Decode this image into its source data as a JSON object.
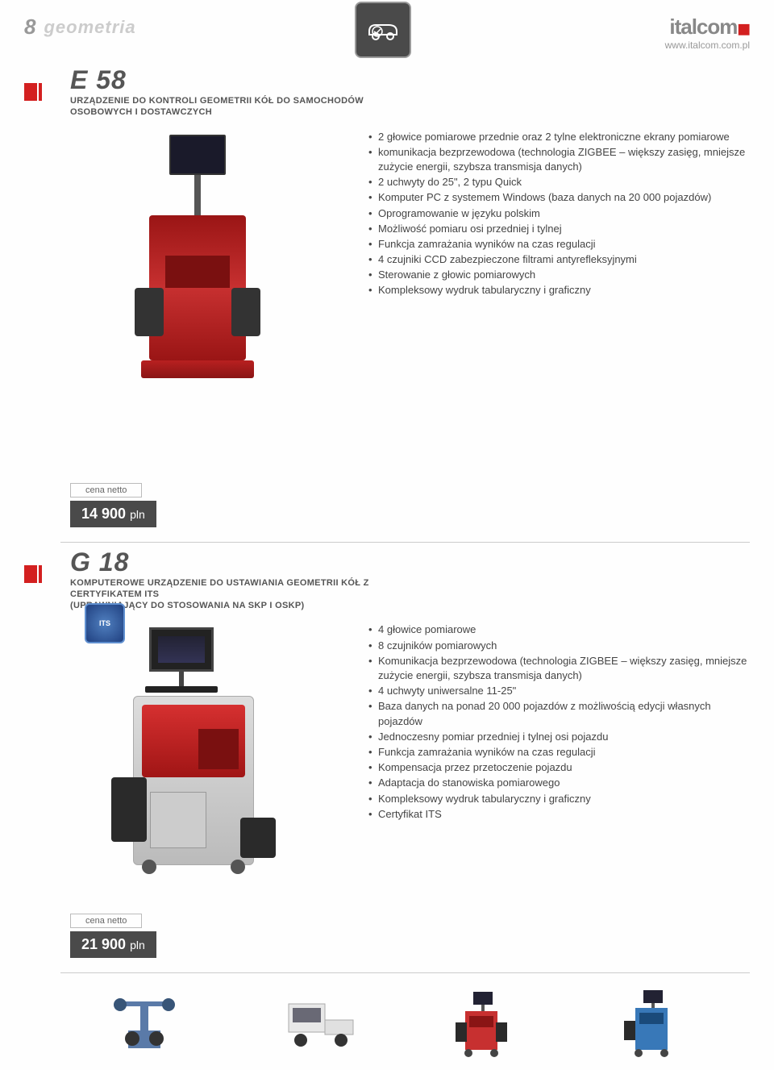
{
  "header": {
    "page_number": "8",
    "section": "geometria",
    "brand": "italcom",
    "url": "www.italcom.com.pl"
  },
  "product1": {
    "code": "E 58",
    "subtitle": "URZĄDZENIE DO KONTROLI GEOMETRII KÓŁ DO SAMOCHODÓW OSOBOWYCH I DOSTAWCZYCH",
    "features": [
      "2 głowice pomiarowe przednie oraz 2 tylne elektroniczne ekrany pomiarowe",
      "komunikacja bezprzewodowa (technologia ZIGBEE – większy zasięg, mniejsze zużycie energii, szybsza transmisja danych)",
      "2 uchwyty do 25\", 2 typu Quick",
      "Komputer PC z systemem Windows (baza danych na 20 000 pojazdów)",
      "Oprogramowanie w języku polskim",
      "Możliwość pomiaru osi przedniej i tylnej",
      "Funkcja zamrażania wyników na czas regulacji",
      "4 czujniki CCD zabezpieczone filtrami antyrefleksyjnymi",
      "Sterowanie z głowic pomiarowych",
      "Kompleksowy wydruk tabularyczny i graficzny"
    ],
    "price_label": "cena netto",
    "price": "14 900",
    "price_unit": "pln"
  },
  "product2": {
    "code": "G 18",
    "subtitle": "KOMPUTEROWE URZĄDZENIE DO USTAWIANIA GEOMETRII KÓŁ Z CERTYFIKATEM ITS\n(UPRAWNIAJĄCY DO STOSOWANIA NA SKP I OSKP)",
    "features": [
      "4 głowice pomiarowe",
      "8 czujników pomiarowych",
      "Komunikacja bezprzewodowa (technologia ZIGBEE – większy zasięg, mniejsze zużycie energii, szybsza transmisja danych)",
      "4 uchwyty uniwersalne 11-25\"",
      "Baza danych na ponad 20 000 pojazdów z możliwością edycji własnych pojazdów",
      "Jednoczesny pomiar przedniej i tylnej osi pojazdu",
      "Funkcja zamrażania wyników na czas regulacji",
      "Kompensacja przez przetoczenie pojazdu",
      "Adaptacja do stanowiska pomiarowego",
      "Kompleksowy wydruk tabularyczny i graficzny",
      "Certyfikat ITS"
    ],
    "price_label": "cena netto",
    "price": "21 900",
    "price_unit": "pln",
    "badge": "ITS"
  },
  "colors": {
    "accent_red": "#d32020",
    "dark_gray": "#4a4a4a",
    "text": "#444"
  }
}
